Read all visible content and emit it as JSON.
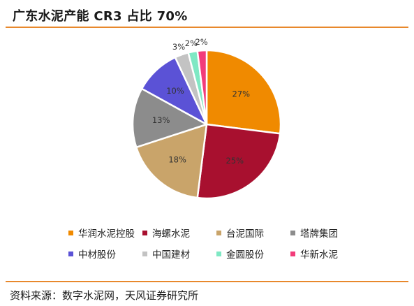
{
  "header": {
    "title": "广东水泥产能 CR3 占比 70%"
  },
  "footer": {
    "source": "资料来源：数字水泥网，天风证券研究所"
  },
  "chart_data": {
    "type": "pie",
    "start_angle_deg": 0,
    "direction": "clockwise",
    "slices": [
      {
        "name": "华润水泥控股",
        "value": 27,
        "label": "27%",
        "color": "#f08a00",
        "label_color": "#333333"
      },
      {
        "name": "海螺水泥",
        "value": 25,
        "label": "25%",
        "color": "#a8102f",
        "label_color": "#333333"
      },
      {
        "name": "台泥国际",
        "value": 18,
        "label": "18%",
        "color": "#c9a46a",
        "label_color": "#333333"
      },
      {
        "name": "塔牌集团",
        "value": 13,
        "label": "13%",
        "color": "#8c8c8c",
        "label_color": "#333333"
      },
      {
        "name": "中材股份",
        "value": 10,
        "label": "10%",
        "color": "#5b52d6",
        "label_color": "#333333"
      },
      {
        "name": "中国建材",
        "value": 3,
        "label": "3%",
        "color": "#c3c3c3",
        "label_color": "#333333"
      },
      {
        "name": "金圆股份",
        "value": 2,
        "label": "2%",
        "color": "#7fe8c4",
        "label_color": "#333333"
      },
      {
        "name": "华新水泥",
        "value": 2,
        "label": "2%",
        "color": "#f23c7a",
        "label_color": "#333333"
      }
    ],
    "legend_position": "bottom"
  }
}
